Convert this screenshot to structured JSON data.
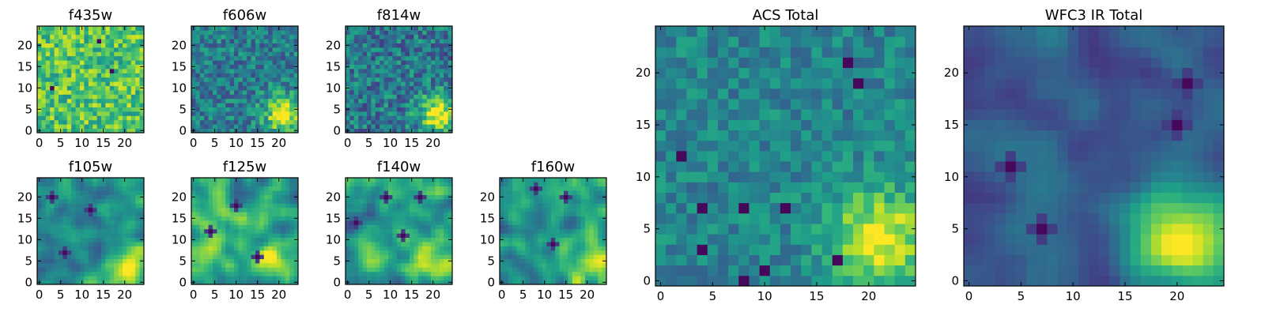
{
  "colormap": "viridis",
  "chart_data": [
    {
      "type": "heatmap",
      "title": "f435w",
      "xlim": [
        -0.5,
        24.5
      ],
      "ylim": [
        -0.5,
        24.5
      ],
      "xticks": [
        0,
        5,
        10,
        15,
        20
      ],
      "yticks": [
        0,
        5,
        10,
        15,
        20
      ],
      "grid_size": 25,
      "source_rule": "noise",
      "level": 0.72,
      "contrast": 0.22,
      "hotspot": null,
      "darkspots": [
        [
          3,
          10
        ],
        [
          17,
          14
        ],
        [
          14,
          21
        ]
      ],
      "seed": 11
    },
    {
      "type": "heatmap",
      "title": "f606w",
      "xlim": [
        -0.5,
        24.5
      ],
      "ylim": [
        -0.5,
        24.5
      ],
      "xticks": [
        0,
        5,
        10,
        15,
        20
      ],
      "yticks": [
        0,
        5,
        10,
        15,
        20
      ],
      "grid_size": 25,
      "source_rule": "noise",
      "level": 0.42,
      "contrast": 0.2,
      "hotspot": [
        21,
        4,
        3.0,
        0.6
      ],
      "darkspots": [],
      "seed": 23
    },
    {
      "type": "heatmap",
      "title": "f814w",
      "xlim": [
        -0.5,
        24.5
      ],
      "ylim": [
        -0.5,
        24.5
      ],
      "xticks": [
        0,
        5,
        10,
        15,
        20
      ],
      "yticks": [
        0,
        5,
        10,
        15,
        20
      ],
      "grid_size": 25,
      "source_rule": "noise",
      "level": 0.4,
      "contrast": 0.22,
      "hotspot": [
        21,
        4,
        3.0,
        0.6
      ],
      "darkspots": [],
      "seed": 37
    },
    {
      "type": "heatmap",
      "title": "f105w",
      "xlim": [
        -0.5,
        24.5
      ],
      "ylim": [
        -0.5,
        24.5
      ],
      "xticks": [
        0,
        5,
        10,
        15,
        20
      ],
      "yticks": [
        0,
        5,
        10,
        15,
        20
      ],
      "grid_size": 25,
      "source_rule": "smooth",
      "level": 0.48,
      "contrast": 0.22,
      "hotspot": [
        21,
        4,
        3.5,
        0.45
      ],
      "darkspots": [
        [
          6,
          7
        ],
        [
          12,
          17
        ],
        [
          3,
          20
        ]
      ],
      "seed": 41
    },
    {
      "type": "heatmap",
      "title": "f125w",
      "xlim": [
        -0.5,
        24.5
      ],
      "ylim": [
        -0.5,
        24.5
      ],
      "xticks": [
        0,
        5,
        10,
        15,
        20
      ],
      "yticks": [
        0,
        5,
        10,
        15,
        20
      ],
      "grid_size": 25,
      "source_rule": "smooth",
      "level": 0.62,
      "contrast": 0.24,
      "hotspot": [
        21,
        4,
        3.5,
        0.35
      ],
      "darkspots": [
        [
          15,
          6
        ],
        [
          4,
          12
        ],
        [
          10,
          18
        ]
      ],
      "seed": 53
    },
    {
      "type": "heatmap",
      "title": "f140w",
      "xlim": [
        -0.5,
        24.5
      ],
      "ylim": [
        -0.5,
        24.5
      ],
      "xticks": [
        0,
        5,
        10,
        15,
        20
      ],
      "yticks": [
        0,
        5,
        10,
        15,
        20
      ],
      "grid_size": 25,
      "source_rule": "smooth",
      "level": 0.58,
      "contrast": 0.24,
      "hotspot": [
        21,
        4,
        3.5,
        0.35
      ],
      "darkspots": [
        [
          2,
          14
        ],
        [
          13,
          11
        ],
        [
          17,
          20
        ],
        [
          9,
          20
        ]
      ],
      "seed": 67
    },
    {
      "type": "heatmap",
      "title": "f160w",
      "xlim": [
        -0.5,
        24.5
      ],
      "ylim": [
        -0.5,
        24.5
      ],
      "xticks": [
        0,
        5,
        10,
        15,
        20
      ],
      "yticks": [
        0,
        5,
        10,
        15,
        20
      ],
      "grid_size": 25,
      "source_rule": "smooth",
      "level": 0.55,
      "contrast": 0.22,
      "hotspot": [
        20,
        4,
        4.0,
        0.32
      ],
      "darkspots": [
        [
          12,
          9
        ],
        [
          15,
          20
        ],
        [
          8,
          22
        ]
      ],
      "seed": 79
    },
    {
      "type": "heatmap",
      "title": "ACS Total",
      "xlim": [
        -0.5,
        24.5
      ],
      "ylim": [
        -0.5,
        24.5
      ],
      "xticks": [
        0,
        5,
        10,
        15,
        20
      ],
      "yticks": [
        0,
        5,
        10,
        15,
        20
      ],
      "grid_size": 25,
      "source_rule": "noise",
      "level": 0.45,
      "contrast": 0.14,
      "hotspot": [
        21,
        4,
        3.2,
        0.55
      ],
      "darkspots": [
        [
          2,
          12
        ],
        [
          4,
          7
        ],
        [
          4,
          3
        ],
        [
          8,
          7
        ],
        [
          8,
          0
        ],
        [
          10,
          1
        ],
        [
          12,
          7
        ],
        [
          17,
          2
        ],
        [
          18,
          21
        ],
        [
          19,
          19
        ]
      ],
      "seed": 97
    },
    {
      "type": "heatmap",
      "title": "WFC3 IR Total",
      "xlim": [
        -0.5,
        24.5
      ],
      "ylim": [
        -0.5,
        24.5
      ],
      "xticks": [
        0,
        5,
        10,
        15,
        20
      ],
      "yticks": [
        0,
        5,
        10,
        15,
        20
      ],
      "grid_size": 25,
      "source_rule": "smooth",
      "level": 0.28,
      "contrast": 0.12,
      "hotspot": [
        21,
        4,
        4.0,
        0.7
      ],
      "darkspots": [
        [
          7,
          5
        ],
        [
          4,
          11
        ],
        [
          21,
          19
        ],
        [
          20,
          15
        ]
      ],
      "seed": 101
    }
  ]
}
